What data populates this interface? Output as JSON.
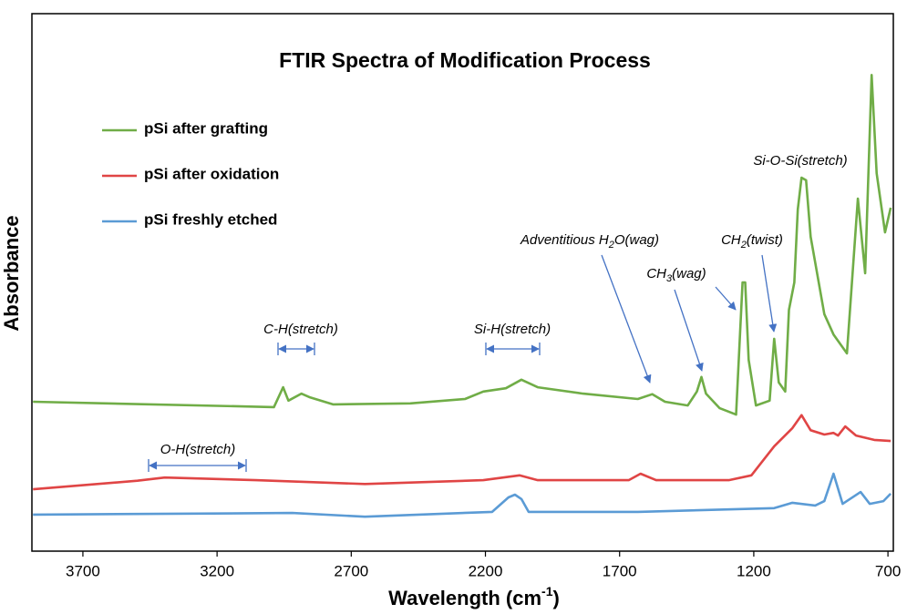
{
  "chart_data": {
    "type": "line",
    "title": "FTIR Spectra of Modification Process",
    "x_label_parts": [
      "Wavelength (cm",
      "-1",
      ")"
    ],
    "y_label": "Absorbance",
    "xlim": [
      3890,
      680
    ],
    "ylim": [
      0,
      100
    ],
    "xticks": [
      3700,
      3200,
      2700,
      2200,
      1700,
      1200,
      700
    ],
    "legend": "top-left",
    "series": [
      {
        "name": "pSi after grafting",
        "color": "#70ad47",
        "x": [
          3886,
          2988,
          2954,
          2934,
          2886,
          2853,
          2768,
          2480,
          2276,
          2208,
          2124,
          2066,
          2005,
          1836,
          1632,
          1578,
          1531,
          1446,
          1412,
          1395,
          1378,
          1327,
          1266,
          1242,
          1232,
          1219,
          1192,
          1141,
          1124,
          1107,
          1083,
          1069,
          1049,
          1036,
          1022,
          1005,
          988,
          937,
          903,
          853,
          812,
          785,
          761,
          742,
          711,
          690
        ],
        "values": [
          27.8,
          26.8,
          30.5,
          28,
          29.3,
          28.6,
          27.3,
          27.5,
          28.3,
          29.7,
          30.3,
          31.9,
          30.5,
          29.3,
          28.3,
          29.2,
          27.8,
          27.1,
          29.7,
          32.4,
          29.3,
          26.6,
          25.4,
          50,
          50,
          35.6,
          27.1,
          28,
          39.5,
          31.4,
          29.7,
          44.9,
          50,
          63.6,
          69.5,
          69,
          58.5,
          44.1,
          40.3,
          36.8,
          65.6,
          51.7,
          88.6,
          70.3,
          59.3,
          63.9
        ]
      },
      {
        "name": "pSi after oxidation",
        "color": "#e04545",
        "x": [
          3886,
          3497,
          3395,
          3056,
          2649,
          2208,
          2073,
          2005,
          1666,
          1622,
          1564,
          1293,
          1209,
          1124,
          1056,
          1022,
          988,
          937,
          903,
          886,
          859,
          819,
          751,
          690
        ],
        "values": [
          11.5,
          13.1,
          13.7,
          13.2,
          12.5,
          13.2,
          14.1,
          13.2,
          13.2,
          14.4,
          13.2,
          13.2,
          14.1,
          19.5,
          22.9,
          25.3,
          22.5,
          21.7,
          22,
          21.5,
          23.2,
          21.5,
          20.7,
          20.5
        ]
      },
      {
        "name": "pSi freshly etched",
        "color": "#5b9bd5",
        "x": [
          3886,
          2920,
          2649,
          2175,
          2114,
          2090,
          2066,
          2039,
          1632,
          1124,
          1056,
          971,
          937,
          903,
          869,
          802,
          768,
          717,
          690
        ],
        "values": [
          6.8,
          7.1,
          6.4,
          7.3,
          10,
          10.5,
          9.7,
          7.3,
          7.3,
          8,
          9,
          8.5,
          9.3,
          14.4,
          8.8,
          11,
          8.8,
          9.3,
          10.7
        ]
      }
    ],
    "annotations": [
      {
        "text_parts": [
          "C-H(stretch)"
        ]
      },
      {
        "text_parts": [
          "Si-H(stretch)"
        ]
      },
      {
        "text_parts": [
          "O-H(stretch)"
        ]
      },
      {
        "text_parts": [
          "Adventitious H",
          "2",
          "O(wag)"
        ]
      },
      {
        "text_parts": [
          "CH",
          "3",
          "(wag)"
        ]
      },
      {
        "text_parts": [
          "CH",
          "2",
          "(twist)"
        ]
      },
      {
        "text_parts": [
          "Si-O-Si(stretch)"
        ]
      }
    ]
  }
}
